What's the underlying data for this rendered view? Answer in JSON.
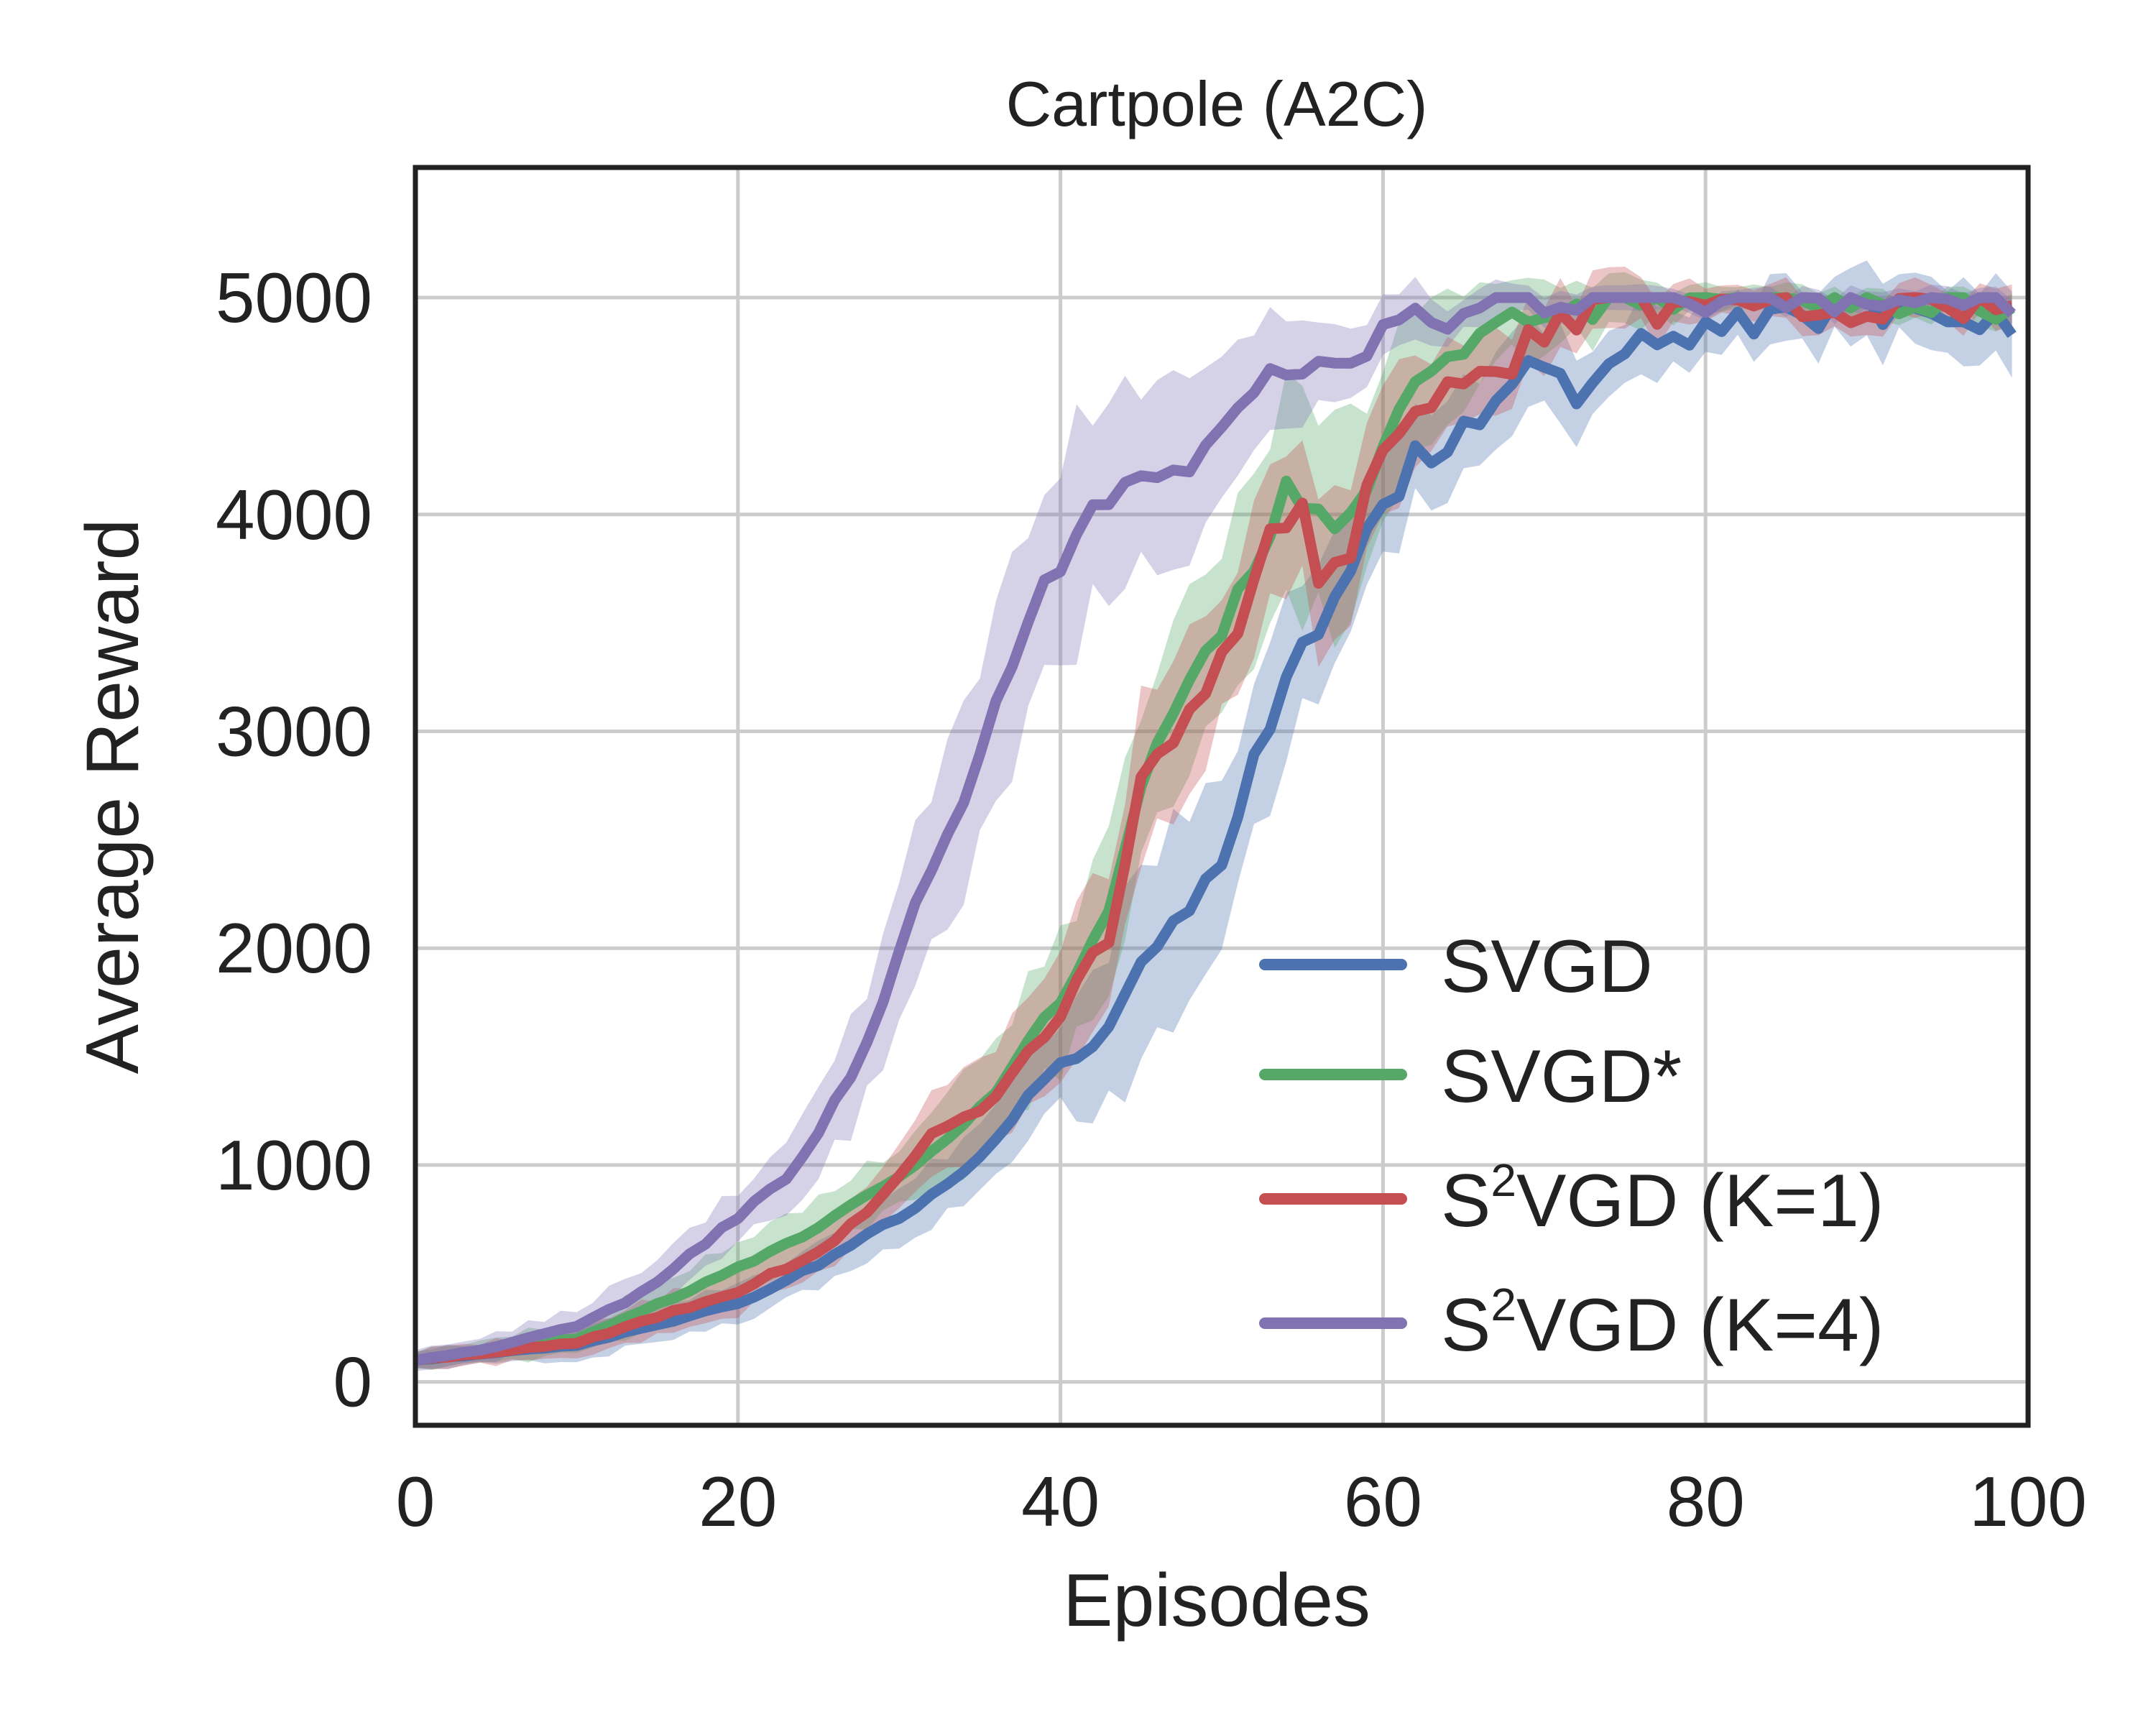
{
  "chart_data": {
    "type": "line",
    "title": "Cartpole (A2C)",
    "xlabel": "Episodes",
    "ylabel": "Average Reward",
    "xlim": [
      0,
      100
    ],
    "ylim": [
      -200,
      5600
    ],
    "xticks": [
      "0",
      "20",
      "40",
      "60",
      "80",
      "100"
    ],
    "yticks": [
      "0",
      "1000",
      "2000",
      "3000",
      "4000",
      "5000"
    ],
    "xtick_values": [
      0,
      20,
      40,
      60,
      80,
      100
    ],
    "ytick_values": [
      0,
      1000,
      2000,
      3000,
      4000,
      5000
    ],
    "grid": true,
    "legend_position": "lower-right",
    "series": [
      {
        "name": "SVGD",
        "legend_base": "SVGD",
        "legend_sup": "",
        "legend_tail": "",
        "color": "#4c72b0",
        "keyframes": [
          [
            0,
            100
          ],
          [
            10,
            170
          ],
          [
            20,
            360
          ],
          [
            25,
            540
          ],
          [
            30,
            760
          ],
          [
            35,
            1020
          ],
          [
            38,
            1300
          ],
          [
            40,
            1480
          ],
          [
            42,
            1520
          ],
          [
            45,
            1950
          ],
          [
            48,
            2200
          ],
          [
            50,
            2350
          ],
          [
            52,
            2900
          ],
          [
            55,
            3350
          ],
          [
            58,
            3700
          ],
          [
            60,
            4050
          ],
          [
            62,
            4250
          ],
          [
            65,
            4400
          ],
          [
            68,
            4600
          ],
          [
            70,
            4750
          ],
          [
            72,
            4450
          ],
          [
            75,
            4750
          ],
          [
            80,
            4850
          ],
          [
            85,
            4900
          ],
          [
            90,
            4950
          ],
          [
            95,
            4950
          ],
          [
            99,
            4830
          ]
        ],
        "band": [
          [
            0,
            40
          ],
          [
            30,
            120
          ],
          [
            40,
            200
          ],
          [
            45,
            450
          ],
          [
            50,
            400
          ],
          [
            55,
            300
          ],
          [
            60,
            250
          ],
          [
            70,
            200
          ],
          [
            80,
            120
          ],
          [
            99,
            180
          ]
        ]
      },
      {
        "name": "SVGD*",
        "legend_base": "SVGD*",
        "legend_sup": "",
        "legend_tail": "",
        "color": "#55a868",
        "keyframes": [
          [
            0,
            100
          ],
          [
            10,
            200
          ],
          [
            20,
            520
          ],
          [
            25,
            720
          ],
          [
            30,
            950
          ],
          [
            35,
            1250
          ],
          [
            40,
            1750
          ],
          [
            43,
            2150
          ],
          [
            45,
            2700
          ],
          [
            47,
            3100
          ],
          [
            50,
            3500
          ],
          [
            52,
            3800
          ],
          [
            54,
            4100
          ],
          [
            56,
            3950
          ],
          [
            58,
            4000
          ],
          [
            60,
            4350
          ],
          [
            62,
            4600
          ],
          [
            65,
            4800
          ],
          [
            70,
            4950
          ],
          [
            80,
            5000
          ],
          [
            90,
            5000
          ],
          [
            99,
            4950
          ]
        ],
        "band": [
          [
            0,
            40
          ],
          [
            30,
            150
          ],
          [
            40,
            300
          ],
          [
            45,
            400
          ],
          [
            50,
            350
          ],
          [
            55,
            500
          ],
          [
            60,
            350
          ],
          [
            70,
            150
          ],
          [
            80,
            60
          ],
          [
            99,
            60
          ]
        ]
      },
      {
        "name": "S²VGD (K=1)",
        "legend_base": "S",
        "legend_sup": "2",
        "legend_tail": "VGD (K=1)",
        "color": "#c44e52",
        "keyframes": [
          [
            0,
            100
          ],
          [
            10,
            180
          ],
          [
            20,
            420
          ],
          [
            25,
            600
          ],
          [
            28,
            780
          ],
          [
            30,
            960
          ],
          [
            32,
            1130
          ],
          [
            35,
            1250
          ],
          [
            38,
            1500
          ],
          [
            40,
            1700
          ],
          [
            42,
            1950
          ],
          [
            43,
            2050
          ],
          [
            45,
            2800
          ],
          [
            47,
            2900
          ],
          [
            49,
            3200
          ],
          [
            51,
            3500
          ],
          [
            53,
            3900
          ],
          [
            55,
            4000
          ],
          [
            56,
            3700
          ],
          [
            58,
            3850
          ],
          [
            60,
            4300
          ],
          [
            62,
            4450
          ],
          [
            64,
            4550
          ],
          [
            66,
            4650
          ],
          [
            68,
            4700
          ],
          [
            70,
            4850
          ],
          [
            72,
            4900
          ],
          [
            75,
            4950
          ],
          [
            80,
            4950
          ],
          [
            90,
            4950
          ],
          [
            99,
            4940
          ]
        ],
        "band": [
          [
            0,
            40
          ],
          [
            30,
            130
          ],
          [
            40,
            280
          ],
          [
            45,
            350
          ],
          [
            50,
            300
          ],
          [
            55,
            350
          ],
          [
            60,
            300
          ],
          [
            70,
            150
          ],
          [
            80,
            80
          ],
          [
            99,
            80
          ]
        ]
      },
      {
        "name": "S²VGD (K=4)",
        "legend_base": "S",
        "legend_sup": "2",
        "legend_tail": "VGD (K=4)",
        "color": "#8172b2",
        "keyframes": [
          [
            0,
            100
          ],
          [
            5,
            160
          ],
          [
            10,
            260
          ],
          [
            13,
            370
          ],
          [
            16,
            520
          ],
          [
            20,
            760
          ],
          [
            23,
            950
          ],
          [
            25,
            1150
          ],
          [
            27,
            1400
          ],
          [
            28,
            1550
          ],
          [
            30,
            2000
          ],
          [
            32,
            2350
          ],
          [
            34,
            2700
          ],
          [
            36,
            3100
          ],
          [
            38,
            3500
          ],
          [
            40,
            3800
          ],
          [
            42,
            4100
          ],
          [
            44,
            4150
          ],
          [
            46,
            4200
          ],
          [
            48,
            4150
          ],
          [
            50,
            4450
          ],
          [
            52,
            4600
          ],
          [
            54,
            4650
          ],
          [
            56,
            4750
          ],
          [
            58,
            4750
          ],
          [
            60,
            4800
          ],
          [
            62,
            4900
          ],
          [
            65,
            4950
          ],
          [
            70,
            5000
          ],
          [
            80,
            5000
          ],
          [
            90,
            5000
          ],
          [
            99,
            4990
          ]
        ],
        "band": [
          [
            0,
            40
          ],
          [
            20,
            120
          ],
          [
            30,
            300
          ],
          [
            40,
            500
          ],
          [
            45,
            450
          ],
          [
            50,
            400
          ],
          [
            55,
            250
          ],
          [
            60,
            150
          ],
          [
            65,
            80
          ],
          [
            80,
            40
          ],
          [
            99,
            60
          ]
        ]
      }
    ]
  }
}
